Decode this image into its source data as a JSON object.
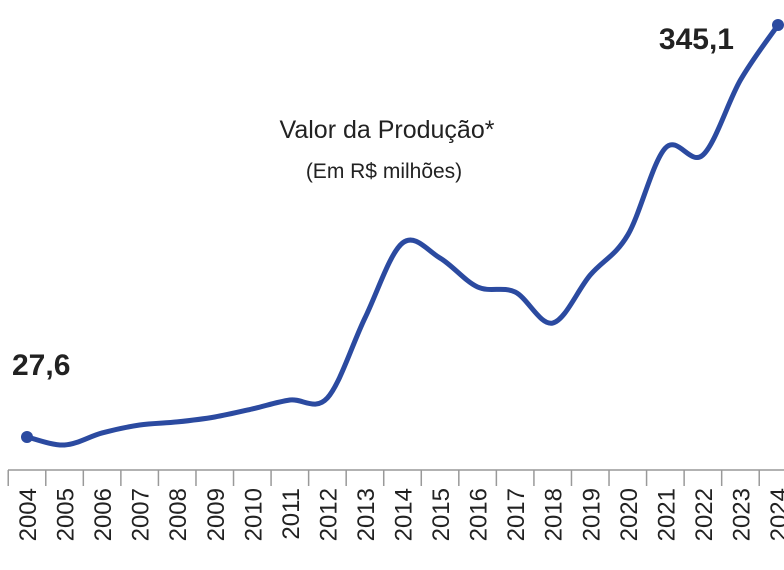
{
  "chart_data": {
    "type": "line",
    "title": "Valor da Produção*",
    "subtitle": "(Em R$ milhões)",
    "categories": [
      "2004",
      "2005",
      "2006",
      "2007",
      "2008",
      "2009",
      "2010",
      "2011",
      "2012",
      "2013",
      "2014",
      "2015",
      "2016",
      "2017",
      "2018",
      "2019",
      "2020",
      "2021",
      "2022",
      "2023",
      "2024"
    ],
    "values": [
      27.6,
      21.4,
      30.7,
      36.8,
      39.2,
      43.0,
      49.2,
      56.1,
      57.7,
      119.3,
      177.1,
      165.5,
      143.2,
      139.3,
      115.4,
      152.4,
      183.3,
      250.3,
      244.9,
      302.7,
      345.1
    ],
    "value_labels": [
      "27,6",
      null,
      null,
      null,
      null,
      null,
      null,
      null,
      null,
      null,
      null,
      null,
      null,
      null,
      null,
      null,
      null,
      null,
      null,
      null,
      "345,1"
    ],
    "color": "#2b4aa0",
    "ylim": [
      10,
      360
    ]
  }
}
